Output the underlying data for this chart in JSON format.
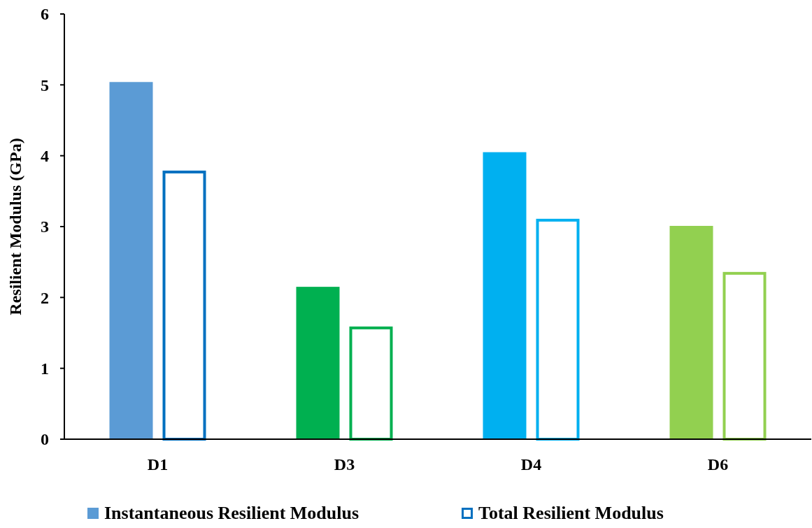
{
  "chart_data": {
    "type": "bar",
    "ylabel": "Resilient Modulus (GPa)",
    "categories": [
      "D1",
      "D3",
      "D4",
      "D6"
    ],
    "series": [
      {
        "name": "Instantaneous Resilient Modulus",
        "color": "#5b9bd5",
        "colors": [
          "#5b9bd5",
          "#00b050",
          "#00b0f0",
          "#92d050"
        ],
        "values": [
          5.04,
          2.15,
          4.05,
          3.01
        ]
      },
      {
        "name": "Total Resilient Modulus",
        "color": "#0070c0",
        "colors": [
          "#0070c0",
          "#00b050",
          "#00b0f0",
          "#92d050"
        ],
        "values": [
          3.79,
          1.59,
          3.11,
          2.36
        ]
      }
    ],
    "ylim": [
      0,
      6
    ],
    "yticks": [
      0,
      1,
      2,
      3,
      4,
      5,
      6
    ],
    "grid": false,
    "legend": "bottom"
  }
}
